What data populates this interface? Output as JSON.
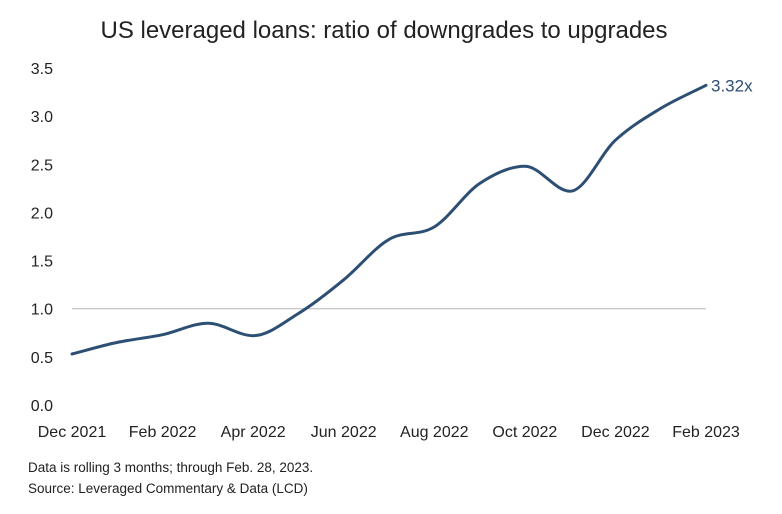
{
  "chart_data": {
    "type": "line",
    "title": "US leveraged loans: ratio of downgrades to upgrades",
    "xlabel": "",
    "ylabel": "",
    "ylim": [
      0,
      3.5
    ],
    "yticks": [
      "0.0",
      "0.5",
      "1.0",
      "1.5",
      "2.0",
      "2.5",
      "3.0",
      "3.5"
    ],
    "xticks": [
      "Dec 2021",
      "Feb 2022",
      "Apr 2022",
      "Jun 2022",
      "Aug 2022",
      "Oct 2022",
      "Dec 2022",
      "Feb 2023"
    ],
    "grid": false,
    "reference_line": 1.0,
    "line_color": "#2e4f74",
    "x": [
      "2021-12",
      "2022-01",
      "2022-02",
      "2022-03",
      "2022-04",
      "2022-05",
      "2022-06",
      "2022-07",
      "2022-08",
      "2022-09",
      "2022-10",
      "2022-11",
      "2022-12",
      "2023-01",
      "2023-02"
    ],
    "series": [
      {
        "values": [
          0.53,
          0.65,
          0.73,
          0.85,
          0.72,
          0.95,
          1.3,
          1.72,
          1.85,
          2.3,
          2.48,
          2.22,
          2.75,
          3.08,
          3.32
        ]
      }
    ],
    "end_label": "3.32x"
  },
  "footnotes": {
    "line1": "Data is rolling 3 months; through Feb. 28, 2023.",
    "line2": "Source: Leveraged Commentary & Data (LCD)"
  }
}
